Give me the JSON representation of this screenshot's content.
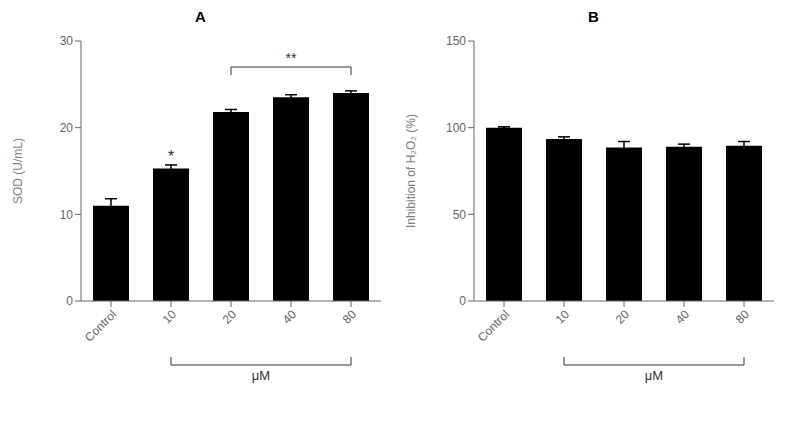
{
  "chart_data": [
    {
      "type": "bar",
      "title": "A",
      "categories": [
        "Control",
        "10",
        "20",
        "40",
        "80"
      ],
      "values": [
        11.0,
        15.3,
        21.8,
        23.5,
        24.0
      ],
      "errors": [
        0.8,
        0.4,
        0.3,
        0.3,
        0.25
      ],
      "ylabel": "SOD (U/mL)",
      "xlabel": {
        "text": "μM",
        "categories": [
          "10",
          "80"
        ]
      },
      "ylim": [
        0,
        30
      ],
      "yticks": [
        0,
        10,
        20,
        30
      ],
      "grid": false,
      "annotations": [
        {
          "text": "*",
          "category": "10"
        },
        {
          "text": "**",
          "categories": [
            "20",
            "80"
          ],
          "y": 27.0
        }
      ]
    },
    {
      "type": "bar",
      "title": "B",
      "categories": [
        "Control",
        "10",
        "20",
        "40",
        "80"
      ],
      "values": [
        100.0,
        93.5,
        88.5,
        89.0,
        89.5
      ],
      "errors": [
        0.5,
        1.2,
        3.5,
        1.5,
        2.5
      ],
      "ylabel": "Inhibition of H₂O₂ (%)",
      "xlabel": {
        "text": "μM",
        "categories": [
          "10",
          "80"
        ]
      },
      "ylim": [
        0,
        150
      ],
      "yticks": [
        0,
        50,
        100,
        150
      ],
      "grid": false
    }
  ]
}
